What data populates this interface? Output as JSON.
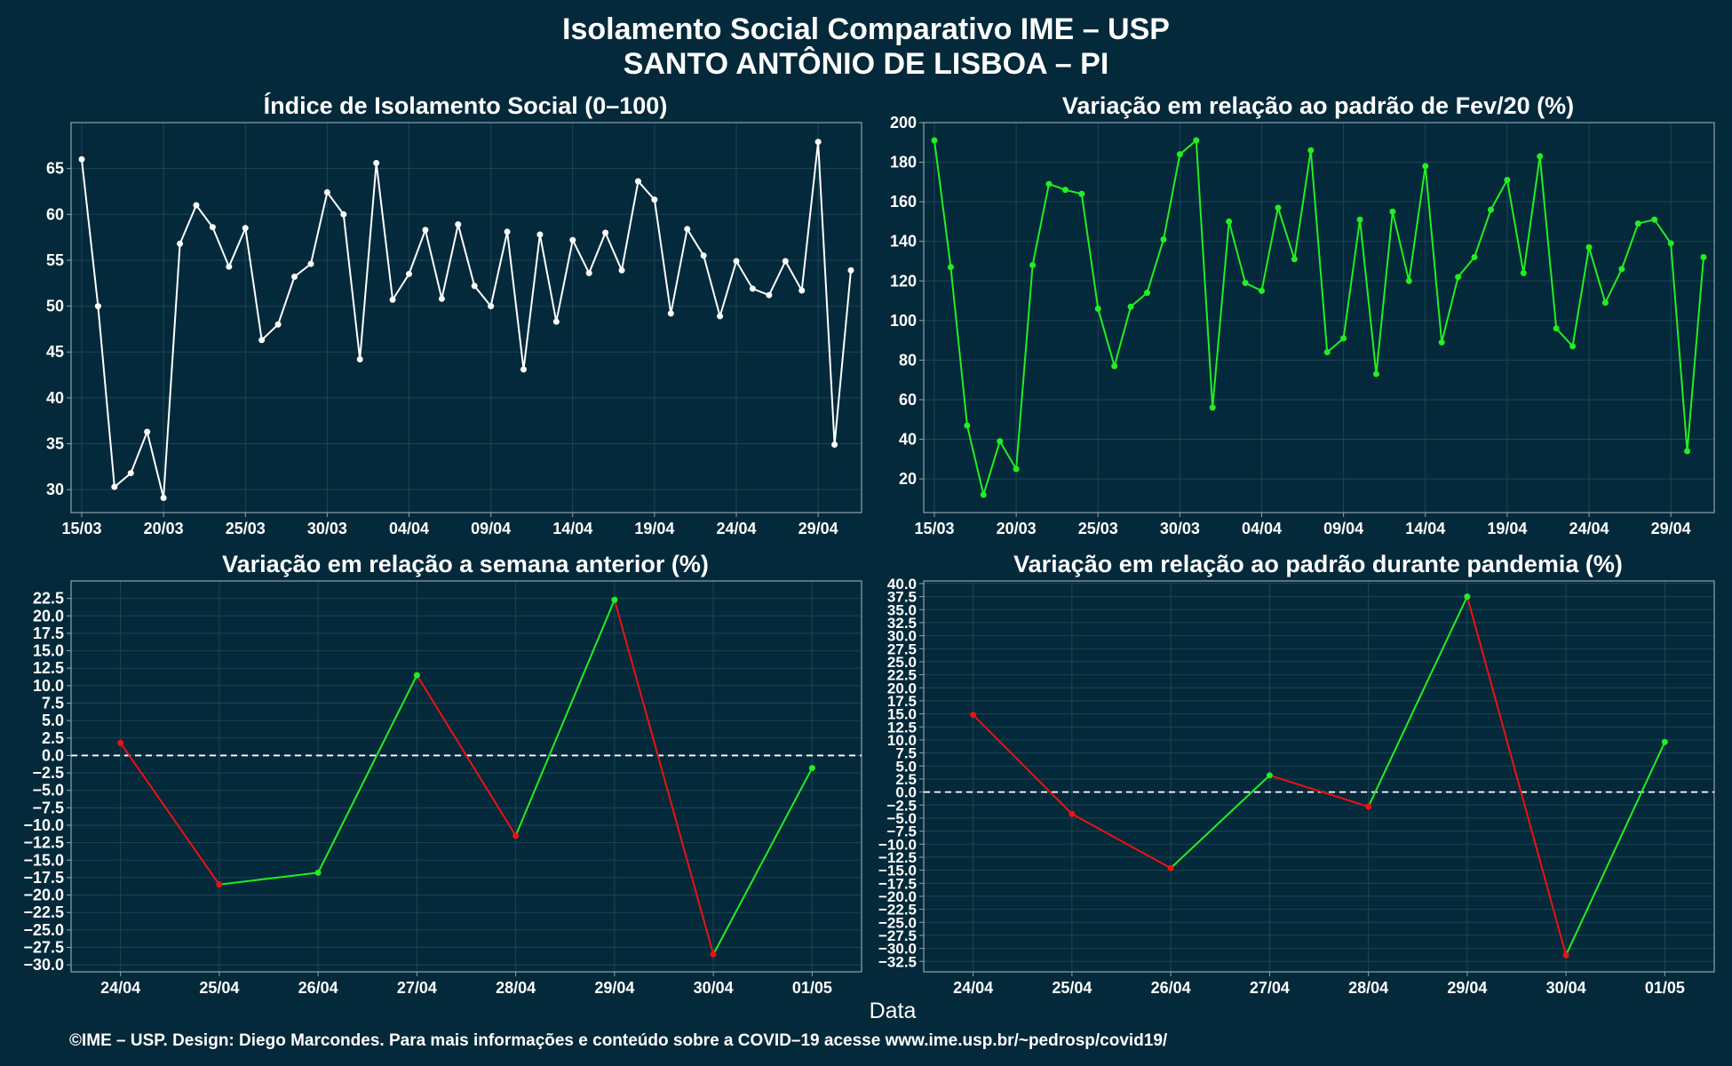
{
  "figure": {
    "title_line1": "Isolamento Social Comparativo IME – USP",
    "title_line2": "SANTO ANTÔNIO DE LISBOA – PI",
    "xlabel": "Data",
    "caption": "©IME – USP. Design: Diego Marcondes. Para mais informações e conteúdo sobre a COVID–19 acesse www.ime.usp.br/~pedrosp/covid19/",
    "colors": {
      "background": "#04293a",
      "grid": "#1d4655",
      "frame": "#8fa3ad",
      "white_line": "#ffffff",
      "green": "#22ee22",
      "red": "#ee1111",
      "zero_line": "#ffffff"
    }
  },
  "chart_data": [
    {
      "type": "line",
      "title": "Índice de Isolamento Social (0–100)",
      "x": [
        "15/03",
        "16/03",
        "17/03",
        "18/03",
        "19/03",
        "20/03",
        "21/03",
        "22/03",
        "23/03",
        "24/03",
        "25/03",
        "26/03",
        "27/03",
        "28/03",
        "29/03",
        "30/03",
        "31/03",
        "01/04",
        "02/04",
        "03/04",
        "04/04",
        "05/04",
        "06/04",
        "07/04",
        "08/04",
        "09/04",
        "10/04",
        "11/04",
        "12/04",
        "13/04",
        "14/04",
        "15/04",
        "16/04",
        "17/04",
        "18/04",
        "19/04",
        "20/04",
        "21/04",
        "22/04",
        "23/04",
        "24/04",
        "25/04",
        "26/04",
        "27/04",
        "28/04",
        "29/04",
        "30/04",
        "01/05"
      ],
      "values": [
        66,
        50,
        30.3,
        31.8,
        36.3,
        29.1,
        56.8,
        61,
        58.6,
        54.3,
        58.5,
        46.3,
        48,
        53.2,
        54.6,
        62.4,
        60,
        44.2,
        65.6,
        50.7,
        53.5,
        58.3,
        50.8,
        58.9,
        52.2,
        50,
        58.1,
        43.1,
        57.8,
        48.3,
        57.2,
        53.6,
        58,
        53.9,
        63.6,
        61.6,
        49.2,
        58.4,
        55.5,
        48.9,
        54.9,
        51.9,
        51.2,
        54.9,
        51.7,
        67.9,
        34.9,
        53.9
      ],
      "xticks": [
        "15/03",
        "20/03",
        "25/03",
        "30/03",
        "04/04",
        "09/04",
        "14/04",
        "19/04",
        "24/04",
        "29/04"
      ],
      "ylim": [
        27.5,
        70
      ],
      "yticks": [
        30,
        35,
        40,
        45,
        50,
        55,
        60,
        65
      ],
      "line_color": "white",
      "grid": true
    },
    {
      "type": "line",
      "title": "Variação em relação ao padrão de Fev/20 (%)",
      "x": [
        "15/03",
        "16/03",
        "17/03",
        "18/03",
        "19/03",
        "20/03",
        "21/03",
        "22/03",
        "23/03",
        "24/03",
        "25/03",
        "26/03",
        "27/03",
        "28/03",
        "29/03",
        "30/03",
        "31/03",
        "01/04",
        "02/04",
        "03/04",
        "04/04",
        "05/04",
        "06/04",
        "07/04",
        "08/04",
        "09/04",
        "10/04",
        "11/04",
        "12/04",
        "13/04",
        "14/04",
        "15/04",
        "16/04",
        "17/04",
        "18/04",
        "19/04",
        "20/04",
        "21/04",
        "22/04",
        "23/04",
        "24/04",
        "25/04",
        "26/04",
        "27/04",
        "28/04",
        "29/04",
        "30/04",
        "01/05"
      ],
      "values": [
        191,
        127,
        47,
        12,
        39,
        25,
        128,
        169,
        166,
        164,
        106,
        77,
        107,
        114,
        141,
        184,
        191,
        56,
        150,
        119,
        115,
        157,
        131,
        186,
        84,
        91,
        151,
        73,
        155,
        120,
        178,
        89,
        122,
        132,
        156,
        171,
        124,
        183,
        96,
        87,
        137,
        109,
        126,
        149,
        151,
        139,
        34,
        132
      ],
      "xticks": [
        "15/03",
        "20/03",
        "25/03",
        "30/03",
        "04/04",
        "09/04",
        "14/04",
        "19/04",
        "24/04",
        "29/04"
      ],
      "ylim": [
        3,
        200
      ],
      "yticks": [
        20,
        40,
        60,
        80,
        100,
        120,
        140,
        160,
        180,
        200
      ],
      "line_color": "green",
      "grid": true
    },
    {
      "type": "line",
      "title": "Variação em relação a semana anterior (%)",
      "x": [
        "24/04",
        "25/04",
        "26/04",
        "27/04",
        "28/04",
        "29/04",
        "30/04",
        "01/05"
      ],
      "values": [
        1.8,
        -18.5,
        -16.8,
        11.5,
        -11.5,
        22.3,
        -28.5,
        -1.8
      ],
      "ylim": [
        -31,
        25
      ],
      "yticks": [
        -30,
        -27.5,
        -25,
        -22.5,
        -20,
        -17.5,
        -15,
        -12.5,
        -10,
        -7.5,
        -5,
        -2.5,
        0,
        2.5,
        5,
        7.5,
        10,
        12.5,
        15,
        17.5,
        20,
        22.5
      ],
      "segment_coloring": "green when rising, red when falling",
      "reference_line": 0,
      "grid": true
    },
    {
      "type": "line",
      "title": "Variação em relação ao padrão durante pandemia (%)",
      "x": [
        "24/04",
        "25/04",
        "26/04",
        "27/04",
        "28/04",
        "29/04",
        "30/04",
        "01/05"
      ],
      "values": [
        14.8,
        -4.2,
        -14.6,
        3.2,
        -2.8,
        37.5,
        -31.3,
        9.6
      ],
      "ylim": [
        -34.5,
        40.5
      ],
      "yticks": [
        -32.5,
        -30,
        -27.5,
        -25,
        -22.5,
        -20,
        -17.5,
        -15,
        -12.5,
        -10,
        -7.5,
        -5,
        -2.5,
        0,
        2.5,
        5,
        7.5,
        10,
        12.5,
        15,
        17.5,
        20,
        22.5,
        25,
        27.5,
        30,
        32.5,
        35,
        37.5,
        40
      ],
      "segment_coloring": "green when rising, red when falling",
      "reference_line": 0,
      "grid": true
    }
  ]
}
